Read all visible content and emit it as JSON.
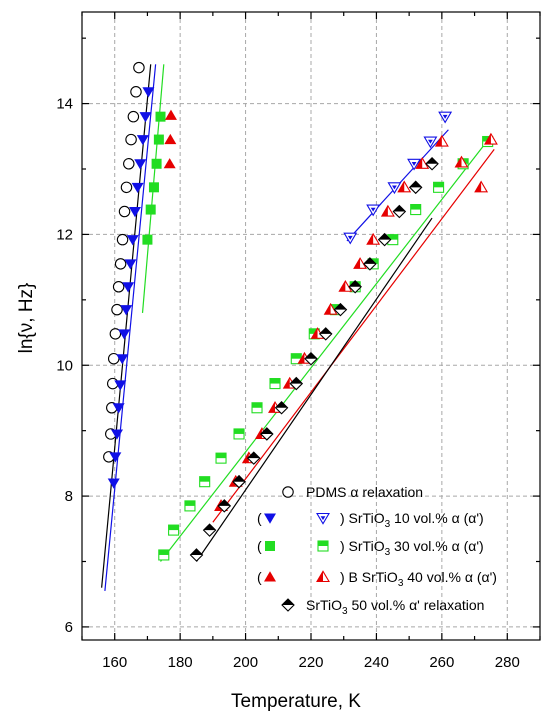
{
  "chart_data": {
    "type": "scatter",
    "xlabel": "Temperature, K",
    "ylabel": "ln{ν, Hz}",
    "xlim": [
      150,
      290
    ],
    "ylim": [
      5.8,
      15.4
    ],
    "x_ticks": [
      160,
      180,
      200,
      220,
      240,
      260,
      280
    ],
    "y_ticks": [
      6,
      8,
      10,
      12,
      14
    ],
    "grid": true,
    "legend_position": "bottom-right",
    "colors": {
      "pdms": "#000000",
      "sr10": "#1010e6",
      "sr30": "#22dd22",
      "sr40": "#e60000",
      "sr50": "#000000"
    },
    "series": [
      {
        "name": "PDMS α relaxation",
        "legend_parts": [
          "PDMS ",
          "α",
          " relaxation"
        ],
        "color": "#000000",
        "marker": "circle-open",
        "x": [
          158.2,
          158.8,
          159.1,
          159.4,
          159.7,
          160.2,
          160.7,
          161.2,
          161.8,
          162.4,
          163.0,
          163.6,
          164.3,
          165.0,
          165.7,
          166.5,
          167.4
        ],
        "y": [
          8.6,
          8.95,
          9.35,
          9.72,
          10.1,
          10.48,
          10.85,
          11.2,
          11.55,
          11.92,
          12.35,
          12.72,
          13.08,
          13.45,
          13.8,
          14.18,
          14.55
        ],
        "fit": [
          [
            156,
            6.6
          ],
          [
            171,
            14.6
          ]
        ]
      },
      {
        "name": "SrTiO3 10 vol.% α (α')",
        "legend_parts": [
          "(",
          ") SrTiO",
          "3",
          " 10 vol.% α (α')"
        ],
        "color": "#1010e6",
        "marker": "triangle-down-filled",
        "x": [
          159.7,
          160.2,
          160.7,
          161.2,
          161.7,
          162.3,
          162.9,
          163.5,
          164.1,
          164.8,
          165.5,
          166.2,
          167.0,
          167.8,
          168.6,
          169.4,
          170.3
        ],
        "y": [
          8.2,
          8.6,
          8.95,
          9.35,
          9.7,
          10.1,
          10.48,
          10.85,
          11.2,
          11.55,
          11.92,
          12.35,
          12.72,
          13.08,
          13.45,
          13.8,
          14.18
        ],
        "fit": [
          [
            157,
            6.55
          ],
          [
            172.5,
            14.6
          ]
        ],
        "alpha_prime": {
          "marker": "triangle-down-open",
          "x": [
            232,
            239,
            245.5,
            251.5,
            256.5,
            261
          ],
          "y": [
            11.95,
            12.38,
            12.72,
            13.08,
            13.42,
            13.8
          ],
          "fit": [
            [
              231,
              11.9
            ],
            [
              262,
              13.6
            ]
          ]
        }
      },
      {
        "name": "SrTiO3 30 vol.% α (α')",
        "legend_parts": [
          "(",
          ") SrTiO",
          "3",
          " 30 vol.%  α (α')"
        ],
        "color": "#22dd22",
        "marker": "square-filled",
        "x": [
          170.0,
          171.0,
          172.0,
          172.8,
          173.5,
          174.0
        ],
        "y": [
          11.92,
          12.38,
          12.72,
          13.08,
          13.45,
          13.8
        ],
        "fit": [
          [
            168.5,
            10.8
          ],
          [
            175,
            14.6
          ]
        ],
        "alpha_prime": {
          "marker": "square-half",
          "x": [
            175,
            178,
            183,
            187.5,
            192.5,
            198,
            203.5,
            209,
            215.5,
            221,
            227.5,
            233.5,
            239,
            245,
            252,
            259,
            266.5,
            274
          ],
          "y": [
            7.1,
            7.48,
            7.85,
            8.22,
            8.58,
            8.95,
            9.35,
            9.72,
            10.1,
            10.48,
            10.85,
            11.2,
            11.55,
            11.92,
            12.38,
            12.72,
            13.08,
            13.42
          ],
          "fit": [
            [
              174,
              7.0
            ],
            [
              275,
              13.5
            ]
          ]
        }
      },
      {
        "name": "B SrTiO3 40 vol.% α (α')",
        "legend_parts": [
          "(",
          ") B SrTiO",
          "3",
          " 40 vol.%  α (α')"
        ],
        "color": "#e60000",
        "marker": "triangle-up-filled",
        "x": [
          176.8,
          177.0,
          177.2
        ],
        "y": [
          13.08,
          13.45,
          13.82
        ],
        "alpha_prime": {
          "marker": "triangle-up-half",
          "x": [
            192.5,
            197.0,
            201.0,
            205.0,
            209.0,
            213.5,
            218.0,
            222.0,
            226.0,
            230.5,
            235.0,
            239.0,
            243.5,
            248.5,
            254.0,
            260.0,
            266.0,
            272.0,
            275.0
          ],
          "y": [
            7.85,
            8.22,
            8.58,
            8.95,
            9.35,
            9.72,
            10.1,
            10.48,
            10.85,
            11.2,
            11.55,
            11.92,
            12.35,
            12.72,
            13.08,
            13.42,
            13.1,
            12.72,
            13.45
          ],
          "fit": [
            [
              190,
              7.6
            ],
            [
              276,
              13.3
            ]
          ]
        }
      },
      {
        "name": "SrTiO3 50 vol.% α' relaxation",
        "legend_parts": [
          "SrTiO",
          "3",
          " 50 vol.% α' relaxation"
        ],
        "color": "#000000",
        "marker": "diamond-half",
        "x": [
          185,
          189,
          193.5,
          198,
          202.5,
          206.5,
          211,
          215.5,
          220,
          224.5,
          229,
          233.5,
          238,
          242.5,
          247,
          252,
          257
        ],
        "y": [
          7.1,
          7.48,
          7.85,
          8.22,
          8.58,
          8.95,
          9.35,
          9.72,
          10.1,
          10.48,
          10.85,
          11.2,
          11.55,
          11.92,
          12.35,
          12.72,
          13.08
        ],
        "fit": [
          [
            185,
            7.0
          ],
          [
            257,
            12.25
          ]
        ]
      }
    ]
  }
}
